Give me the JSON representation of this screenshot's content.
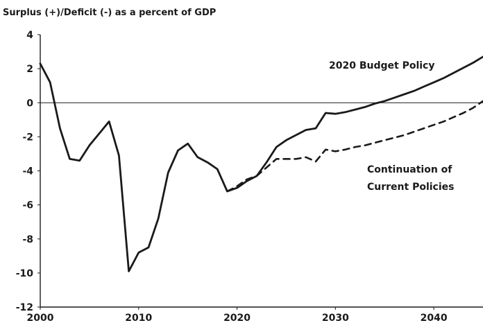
{
  "chart_data": {
    "type": "line",
    "title": "",
    "ylabel": "Surplus (+)/Deficit (-) as a percent of GDP",
    "xlabel": "",
    "xlim": [
      2000,
      2045
    ],
    "ylim": [
      -12,
      4
    ],
    "x_ticks": [
      2000,
      2010,
      2020,
      2030,
      2040
    ],
    "y_ticks": [
      4,
      2,
      0,
      -2,
      -4,
      -6,
      -8,
      -10,
      -12
    ],
    "grid": false,
    "zero_line": true,
    "series": [
      {
        "name": "2020 Budget Policy",
        "style": "solid",
        "points": [
          [
            2000,
            2.3
          ],
          [
            2001,
            1.2
          ],
          [
            2002,
            -1.5
          ],
          [
            2003,
            -3.3
          ],
          [
            2004,
            -3.4
          ],
          [
            2005,
            -2.5
          ],
          [
            2006,
            -1.8
          ],
          [
            2007,
            -1.1
          ],
          [
            2008,
            -3.1
          ],
          [
            2009,
            -9.9
          ],
          [
            2010,
            -8.8
          ],
          [
            2011,
            -8.5
          ],
          [
            2012,
            -6.8
          ],
          [
            2013,
            -4.1
          ],
          [
            2014,
            -2.8
          ],
          [
            2015,
            -2.4
          ],
          [
            2016,
            -3.2
          ],
          [
            2017,
            -3.5
          ],
          [
            2018,
            -3.9
          ],
          [
            2019,
            -5.2
          ],
          [
            2020,
            -5.0
          ],
          [
            2021,
            -4.6
          ],
          [
            2022,
            -4.3
          ],
          [
            2023,
            -3.5
          ],
          [
            2024,
            -2.6
          ],
          [
            2025,
            -2.2
          ],
          [
            2026,
            -1.9
          ],
          [
            2027,
            -1.6
          ],
          [
            2028,
            -1.5
          ],
          [
            2029,
            -0.6
          ],
          [
            2030,
            -0.65
          ],
          [
            2031,
            -0.55
          ],
          [
            2032,
            -0.4
          ],
          [
            2033,
            -0.25
          ],
          [
            2034,
            -0.05
          ],
          [
            2035,
            0.1
          ],
          [
            2036,
            0.3
          ],
          [
            2037,
            0.5
          ],
          [
            2038,
            0.7
          ],
          [
            2039,
            0.95
          ],
          [
            2040,
            1.2
          ],
          [
            2041,
            1.45
          ],
          [
            2042,
            1.75
          ],
          [
            2043,
            2.05
          ],
          [
            2044,
            2.35
          ],
          [
            2045,
            2.7
          ]
        ]
      },
      {
        "name": "Continuation of Current Policies",
        "style": "dashed",
        "points": [
          [
            2019,
            -5.2
          ],
          [
            2020,
            -4.9
          ],
          [
            2021,
            -4.5
          ],
          [
            2022,
            -4.3
          ],
          [
            2023,
            -3.8
          ],
          [
            2024,
            -3.3
          ],
          [
            2025,
            -3.3
          ],
          [
            2026,
            -3.3
          ],
          [
            2027,
            -3.2
          ],
          [
            2028,
            -3.45
          ],
          [
            2029,
            -2.75
          ],
          [
            2030,
            -2.85
          ],
          [
            2031,
            -2.75
          ],
          [
            2032,
            -2.6
          ],
          [
            2033,
            -2.5
          ],
          [
            2034,
            -2.35
          ],
          [
            2035,
            -2.2
          ],
          [
            2036,
            -2.05
          ],
          [
            2037,
            -1.9
          ],
          [
            2038,
            -1.7
          ],
          [
            2039,
            -1.5
          ],
          [
            2040,
            -1.3
          ],
          [
            2041,
            -1.1
          ],
          [
            2042,
            -0.85
          ],
          [
            2043,
            -0.6
          ],
          [
            2044,
            -0.3
          ],
          [
            2045,
            0.1
          ]
        ]
      }
    ],
    "annotations": [
      {
        "text": "2020 Budget Policy",
        "series": "2020 Budget Policy"
      },
      {
        "text": "Continuation of",
        "series": "Continuation of Current Policies"
      },
      {
        "text": "Current Policies",
        "series": "Continuation of Current Policies"
      }
    ],
    "colors": {
      "line": "#1a1a1a",
      "axis": "#1a1a1a",
      "zero_line": "#1a1a1a"
    }
  }
}
